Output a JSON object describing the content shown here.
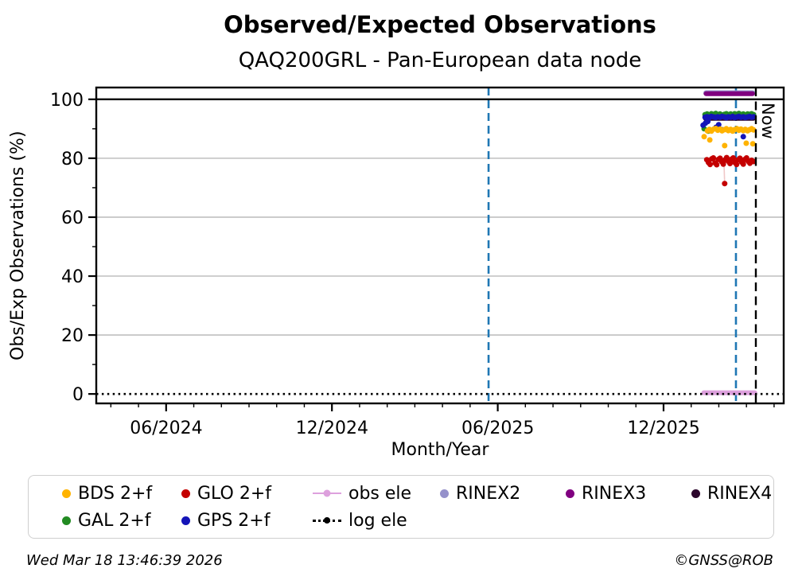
{
  "title": "Observed/Expected Observations",
  "subtitle": "QAQ200GRL - Pan-European data node",
  "footer": {
    "timestamp": "Wed Mar 18 13:46:39 2026",
    "copyright": "©GNSS@ROB"
  },
  "chart_data": {
    "type": "scatter",
    "title": "Observed/Expected Observations",
    "subtitle": "QAQ200GRL - Pan-European data node",
    "xlabel": "Month/Year",
    "ylabel": "Obs/Exp Observations (%)",
    "now_label": "Now",
    "xlim": [
      2024.206,
      2026.279
    ],
    "ylim": [
      -3.2,
      104.0
    ],
    "x_ticks": [
      {
        "v": 2024.417,
        "label": "06/2024"
      },
      {
        "v": 2024.917,
        "label": "12/2024"
      },
      {
        "v": 2025.417,
        "label": "06/2025"
      },
      {
        "v": 2025.917,
        "label": "12/2025"
      }
    ],
    "y_ticks": [
      0,
      20,
      40,
      60,
      80,
      100
    ],
    "grid_y": [
      20,
      40,
      60,
      80
    ],
    "reference_line": 100,
    "vlines": [
      {
        "name": "gap-marker-1",
        "x": 2025.389,
        "color": "#1F77B4",
        "style": "dashed"
      },
      {
        "name": "gap-marker-2",
        "x": 2026.135,
        "color": "#1F77B4",
        "style": "dashed"
      },
      {
        "name": "now-line",
        "x": 2026.195,
        "color": "#000000",
        "style": "dashed"
      }
    ],
    "series": [
      {
        "name": "obs-ele",
        "label": "obs ele",
        "type": "line",
        "color": "#DDA0DD",
        "y": 0.4,
        "x0": 2026.038,
        "x1": 2026.192,
        "width": 6
      },
      {
        "name": "log-ele",
        "label": "log ele",
        "type": "dotted-line",
        "color": "#000000",
        "y": 0.0,
        "x0": 2024.206,
        "x1": 2026.279
      },
      {
        "name": "rinex2",
        "label": "RINEX2",
        "type": "line",
        "color": "#9591CB",
        "y": 102.1,
        "x0": 2026.045,
        "x1": 2026.185,
        "width": 7
      },
      {
        "name": "rinex3",
        "label": "RINEX3",
        "type": "line",
        "color": "#800080",
        "y": 101.9,
        "x0": 2026.045,
        "x1": 2026.185,
        "width": 6
      },
      {
        "name": "gal",
        "label": "GAL 2+f",
        "type": "scatter",
        "color": "#228B22",
        "points": [
          [
            2026.042,
            94.8
          ],
          [
            2026.048,
            95.0
          ],
          [
            2026.055,
            94.7
          ],
          [
            2026.061,
            95.1
          ],
          [
            2026.068,
            94.9
          ],
          [
            2026.074,
            95.2
          ],
          [
            2026.08,
            94.8
          ],
          [
            2026.087,
            95.0
          ],
          [
            2026.093,
            94.6
          ],
          [
            2026.1,
            94.9
          ],
          [
            2026.106,
            95.1
          ],
          [
            2026.112,
            94.8
          ],
          [
            2026.119,
            95.0
          ],
          [
            2026.125,
            94.7
          ],
          [
            2026.131,
            95.1
          ],
          [
            2026.138,
            94.9
          ],
          [
            2026.144,
            95.2
          ],
          [
            2026.15,
            94.8
          ],
          [
            2026.157,
            95.0
          ],
          [
            2026.163,
            94.7
          ],
          [
            2026.17,
            95.0
          ],
          [
            2026.176,
            94.9
          ],
          [
            2026.182,
            95.1
          ],
          [
            2026.188,
            94.8
          ],
          [
            2026.039,
            90.0
          ],
          [
            2026.051,
            89.2
          ]
        ]
      },
      {
        "name": "rinex4",
        "label": "RINEX4",
        "type": "line",
        "color": "#2D062D",
        "y": 93.4,
        "x0": 2026.042,
        "x1": 2026.188,
        "width": 5
      },
      {
        "name": "gps",
        "label": "GPS 2+f",
        "type": "scatter",
        "color": "#1414B8",
        "points": [
          [
            2026.042,
            93.9
          ],
          [
            2026.048,
            94.1
          ],
          [
            2026.055,
            93.8
          ],
          [
            2026.061,
            94.2
          ],
          [
            2026.068,
            94.0
          ],
          [
            2026.074,
            93.8
          ],
          [
            2026.08,
            94.1
          ],
          [
            2026.087,
            93.9
          ],
          [
            2026.093,
            94.2
          ],
          [
            2026.1,
            94.0
          ],
          [
            2026.106,
            93.7
          ],
          [
            2026.112,
            94.1
          ],
          [
            2026.119,
            93.9
          ],
          [
            2026.125,
            94.2
          ],
          [
            2026.131,
            93.8
          ],
          [
            2026.138,
            94.0
          ],
          [
            2026.144,
            94.2
          ],
          [
            2026.15,
            93.9
          ],
          [
            2026.157,
            94.1
          ],
          [
            2026.163,
            93.8
          ],
          [
            2026.17,
            94.0
          ],
          [
            2026.176,
            94.2
          ],
          [
            2026.182,
            93.9
          ],
          [
            2026.188,
            94.1
          ],
          [
            2026.036,
            91.2
          ],
          [
            2026.043,
            91.9
          ],
          [
            2026.05,
            92.5
          ],
          [
            2026.075,
            90.5
          ],
          [
            2026.083,
            91.4
          ],
          [
            2026.092,
            89.7
          ],
          [
            2026.157,
            87.3
          ]
        ]
      },
      {
        "name": "bds",
        "label": "BDS 2+f",
        "type": "scatter",
        "color": "#FFB300",
        "points": [
          [
            2026.049,
            89.3
          ],
          [
            2026.055,
            89.8
          ],
          [
            2026.061,
            89.2
          ],
          [
            2026.068,
            89.9
          ],
          [
            2026.074,
            90.1
          ],
          [
            2026.08,
            89.5
          ],
          [
            2026.087,
            89.9
          ],
          [
            2026.093,
            89.3
          ],
          [
            2026.1,
            89.7
          ],
          [
            2026.106,
            90.0
          ],
          [
            2026.112,
            89.4
          ],
          [
            2026.119,
            89.8
          ],
          [
            2026.125,
            89.2
          ],
          [
            2026.131,
            89.7
          ],
          [
            2026.138,
            90.0
          ],
          [
            2026.144,
            89.5
          ],
          [
            2026.15,
            89.9
          ],
          [
            2026.157,
            89.4
          ],
          [
            2026.163,
            89.8
          ],
          [
            2026.17,
            89.3
          ],
          [
            2026.176,
            89.7
          ],
          [
            2026.182,
            90.0
          ],
          [
            2026.188,
            89.6
          ],
          [
            2026.039,
            87.3
          ],
          [
            2026.056,
            86.2
          ],
          [
            2026.101,
            84.3
          ],
          [
            2026.166,
            85.1
          ],
          [
            2026.186,
            84.9
          ]
        ]
      },
      {
        "name": "glo-connector",
        "label": "",
        "type": "connector",
        "color": "#F0C8C8",
        "points": [
          [
            2026.099,
            78.0
          ],
          [
            2026.101,
            71.4
          ]
        ]
      },
      {
        "name": "glo",
        "label": "GLO 2+f",
        "type": "scatter",
        "color": "#C40000",
        "points": [
          [
            2026.047,
            79.5
          ],
          [
            2026.052,
            78.6
          ],
          [
            2026.057,
            77.9
          ],
          [
            2026.062,
            79.8
          ],
          [
            2026.067,
            80.1
          ],
          [
            2026.072,
            78.4
          ],
          [
            2026.077,
            77.8
          ],
          [
            2026.082,
            79.6
          ],
          [
            2026.087,
            80.0
          ],
          [
            2026.092,
            78.8
          ],
          [
            2026.097,
            78.0
          ],
          [
            2026.102,
            79.4
          ],
          [
            2026.107,
            80.2
          ],
          [
            2026.112,
            79.0
          ],
          [
            2026.117,
            78.2
          ],
          [
            2026.122,
            79.7
          ],
          [
            2026.127,
            80.1
          ],
          [
            2026.132,
            78.6
          ],
          [
            2026.137,
            77.9
          ],
          [
            2026.142,
            79.5
          ],
          [
            2026.147,
            80.0
          ],
          [
            2026.152,
            78.7
          ],
          [
            2026.157,
            78.0
          ],
          [
            2026.162,
            79.6
          ],
          [
            2026.167,
            80.1
          ],
          [
            2026.172,
            79.0
          ],
          [
            2026.177,
            78.3
          ],
          [
            2026.182,
            79.3
          ],
          [
            2026.188,
            78.9
          ],
          [
            2026.101,
            71.4
          ]
        ]
      }
    ]
  },
  "legend": {
    "items": [
      {
        "name": "bds",
        "label": "BDS 2+f",
        "color": "#FFB300",
        "marker": "dot"
      },
      {
        "name": "gal",
        "label": "GAL 2+f",
        "color": "#228B22",
        "marker": "dot"
      },
      {
        "name": "glo",
        "label": "GLO 2+f",
        "color": "#C40000",
        "marker": "dot"
      },
      {
        "name": "gps",
        "label": "GPS 2+f",
        "color": "#1414B8",
        "marker": "dot"
      },
      {
        "name": "obs-ele",
        "label": "obs ele",
        "color": "#DDA0DD",
        "marker": "line-dot"
      },
      {
        "name": "log-ele",
        "label": "log ele",
        "color": "#000000",
        "marker": "dotted-line-dot"
      },
      {
        "name": "rinex2",
        "label": "RINEX2",
        "color": "#9591CB",
        "marker": "dot"
      },
      {
        "name": "rinex3",
        "label": "RINEX3",
        "color": "#800080",
        "marker": "dot"
      },
      {
        "name": "rinex4",
        "label": "RINEX4",
        "color": "#2D062D",
        "marker": "dot"
      }
    ]
  }
}
